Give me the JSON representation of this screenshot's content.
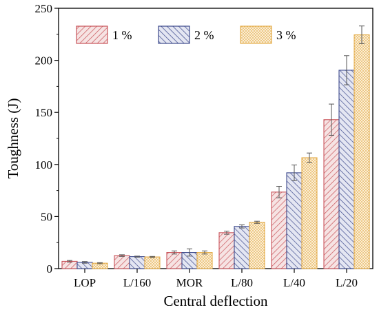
{
  "chart_data": {
    "type": "bar",
    "xlabel": "Central deflection",
    "ylabel": "Toughness (J)",
    "ylim": [
      0,
      250
    ],
    "yticks": [
      0,
      50,
      100,
      150,
      200,
      250
    ],
    "categories": [
      "LOP",
      "L/160",
      "MOR",
      "L/80",
      "L/40",
      "L/20"
    ],
    "series": [
      {
        "name": "1 %",
        "color": "#c9545a",
        "fill": "#f6e3e3",
        "pattern": "diagonal-up",
        "values": [
          7,
          12.5,
          15.5,
          34.5,
          73.5,
          143
        ],
        "errors": [
          0.8,
          0.8,
          1.5,
          1.5,
          5.5,
          15
        ]
      },
      {
        "name": "2 %",
        "color": "#3d4a8c",
        "fill": "#e4e6f2",
        "pattern": "diagonal-down",
        "values": [
          6,
          11.5,
          15.5,
          40.5,
          92,
          190.5
        ],
        "errors": [
          0.8,
          0.5,
          3.5,
          1.5,
          7.5,
          14
        ]
      },
      {
        "name": "3 %",
        "color": "#e4ad4c",
        "fill": "#fbeed6",
        "pattern": "dots",
        "values": [
          5.2,
          11.2,
          15.5,
          44.5,
          106.5,
          224.5
        ],
        "errors": [
          0.5,
          0.5,
          1.5,
          1.0,
          4.5,
          8.5
        ]
      }
    ],
    "legend": {
      "position": "top-left"
    },
    "grid": false
  }
}
